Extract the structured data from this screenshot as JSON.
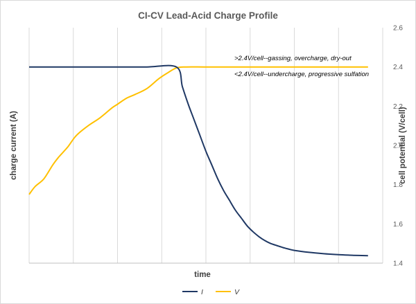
{
  "chart_data": {
    "type": "line",
    "title": "CI-CV Lead-Acid Charge Profile",
    "xlabel": "time",
    "ylabel_left": "charge current (A)",
    "ylabel_right": "cell potential (V/cell)",
    "x_ticks_labeled": false,
    "grid": "vertical gridlines only",
    "ylim_right": [
      1.4,
      2.6
    ],
    "yticks_right": [
      "1.4",
      "1.6",
      "1.8",
      "2.0",
      "2.2",
      "2.4",
      "2.6"
    ],
    "annotations": [
      ">2.4V/cell--gassing, overcharge, dry-out",
      "<2.4V/cell--undercharge, progressive sulfation"
    ],
    "legend_position": "bottom",
    "series": [
      {
        "name": "I",
        "color": "#1f3864",
        "axis": "right",
        "x": [
          0,
          1,
          2,
          3,
          4,
          5,
          5.2,
          5.4,
          5.6,
          5.8,
          6.0,
          6.2,
          6.4,
          6.6,
          6.8,
          7.0,
          7.2,
          7.4,
          7.6,
          7.8,
          8.0,
          8.2,
          8.4,
          8.6,
          8.8,
          9.0,
          9.5,
          10.0,
          10.5,
          11.0,
          11.5
        ],
        "y": [
          2.4,
          2.4,
          2.4,
          2.4,
          2.4,
          2.4,
          2.3,
          2.21,
          2.13,
          2.05,
          1.97,
          1.9,
          1.83,
          1.77,
          1.72,
          1.67,
          1.63,
          1.59,
          1.56,
          1.535,
          1.515,
          1.5,
          1.49,
          1.48,
          1.472,
          1.465,
          1.455,
          1.448,
          1.443,
          1.44,
          1.438
        ]
      },
      {
        "name": "V",
        "color": "#ffc000",
        "axis": "right",
        "x": [
          0,
          0.2,
          0.5,
          0.8,
          1.0,
          1.3,
          1.6,
          2.0,
          2.4,
          2.8,
          3.0,
          3.3,
          3.6,
          4.0,
          4.4,
          4.7,
          5.0,
          5.3,
          6.0,
          7.0,
          8.0,
          9.0,
          10.0,
          11.0,
          11.5
        ],
        "y": [
          1.75,
          1.79,
          1.83,
          1.9,
          1.94,
          1.99,
          2.05,
          2.1,
          2.14,
          2.19,
          2.21,
          2.24,
          2.26,
          2.29,
          2.34,
          2.37,
          2.395,
          2.4,
          2.4,
          2.4,
          2.4,
          2.4,
          2.4,
          2.4,
          2.4
        ]
      }
    ]
  }
}
